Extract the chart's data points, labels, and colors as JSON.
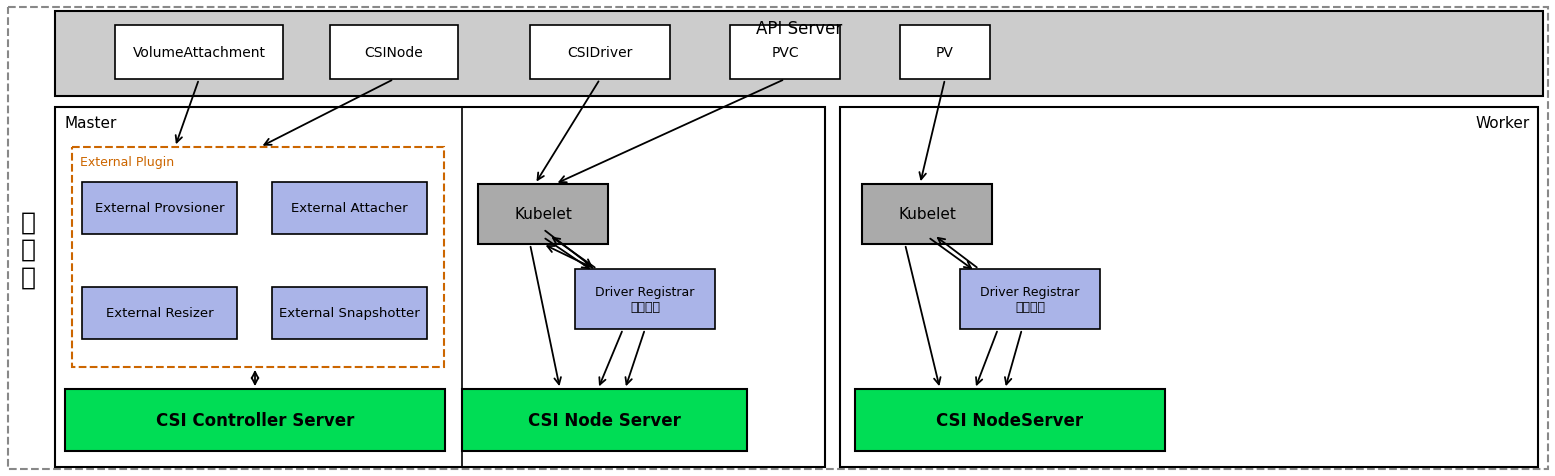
{
  "title": "API Server",
  "bg_color": "#ffffff",
  "api_server_bg": "#cccccc",
  "api_box_color": "#ffffff",
  "api_boxes": [
    "VolumeAttachment",
    "CSINode",
    "CSIDriver",
    "PVC",
    "PV"
  ],
  "master_label": "Master",
  "worker_label": "Worker",
  "external_plugin_label": "External Plugin",
  "external_plugin_border": "#cc6600",
  "ep_box_color": "#aab4e8",
  "ep_boxes": [
    "External Provsioner",
    "External Attacher",
    "External Resizer",
    "External Snapshotter"
  ],
  "kubelet_color": "#aaaaaa",
  "driver_registrar_color": "#aab4e8",
  "csi_color": "#00dd55",
  "left_label": "块\n存\n储",
  "csi_controller": "CSI Controller Server",
  "csi_node": "CSI Node Server",
  "csi_nodeserver": "CSI NodeServer",
  "kubelet_label": "Kubelet",
  "driver_registrar_label": "Driver Registrar\n（注册）"
}
